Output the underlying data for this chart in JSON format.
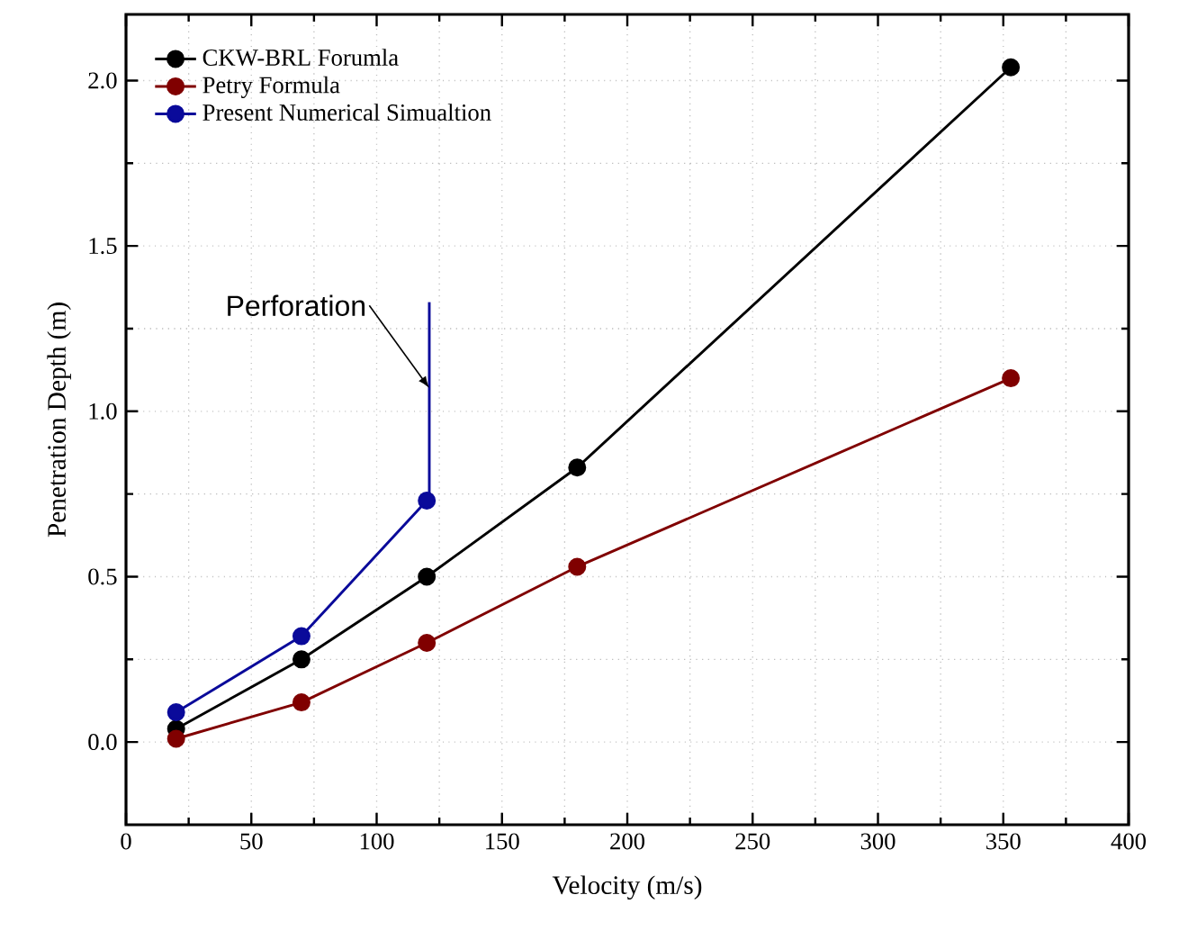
{
  "chart_data": {
    "type": "line",
    "xlabel": "Velocity (m/s)",
    "ylabel": "Penetration Depth (m)",
    "xlim": [
      0,
      400
    ],
    "xticks": [
      0,
      50,
      100,
      150,
      200,
      250,
      300,
      350,
      400
    ],
    "ylim": [
      -0.25,
      2.2
    ],
    "yticks": [
      {
        "value": 0.0,
        "label": "0.0"
      },
      {
        "value": 0.5,
        "label": "0.5"
      },
      {
        "value": 1.0,
        "label": "1.0"
      },
      {
        "value": 1.5,
        "label": "1.5"
      },
      {
        "value": 2.0,
        "label": "2.0"
      }
    ],
    "grid": true,
    "legend": "top left",
    "marker": "circle",
    "line_style": "solid",
    "series": [
      {
        "name": "CKW-BRL Forumla",
        "color": "#000000",
        "x": [
          20,
          70,
          120,
          180,
          353
        ],
        "values": [
          0.04,
          0.25,
          0.5,
          0.83,
          2.04
        ]
      },
      {
        "name": "Petry Formula",
        "color": "#800000",
        "x": [
          20,
          70,
          120,
          180,
          353
        ],
        "values": [
          0.01,
          0.12,
          0.3,
          0.53,
          1.1
        ]
      },
      {
        "name": "Present Numerical Simualtion",
        "color": "#0a0a9a",
        "x": [
          20,
          70,
          120
        ],
        "values": [
          0.09,
          0.32,
          0.73
        ]
      },
      {
        "color": "#0a0a9a",
        "x": [
          121,
          121
        ],
        "values": [
          0.73,
          1.33
        ],
        "marker": "none"
      }
    ],
    "annotations": [
      {
        "text": "Perforation",
        "x": 121,
        "y": 1.07
      }
    ]
  }
}
